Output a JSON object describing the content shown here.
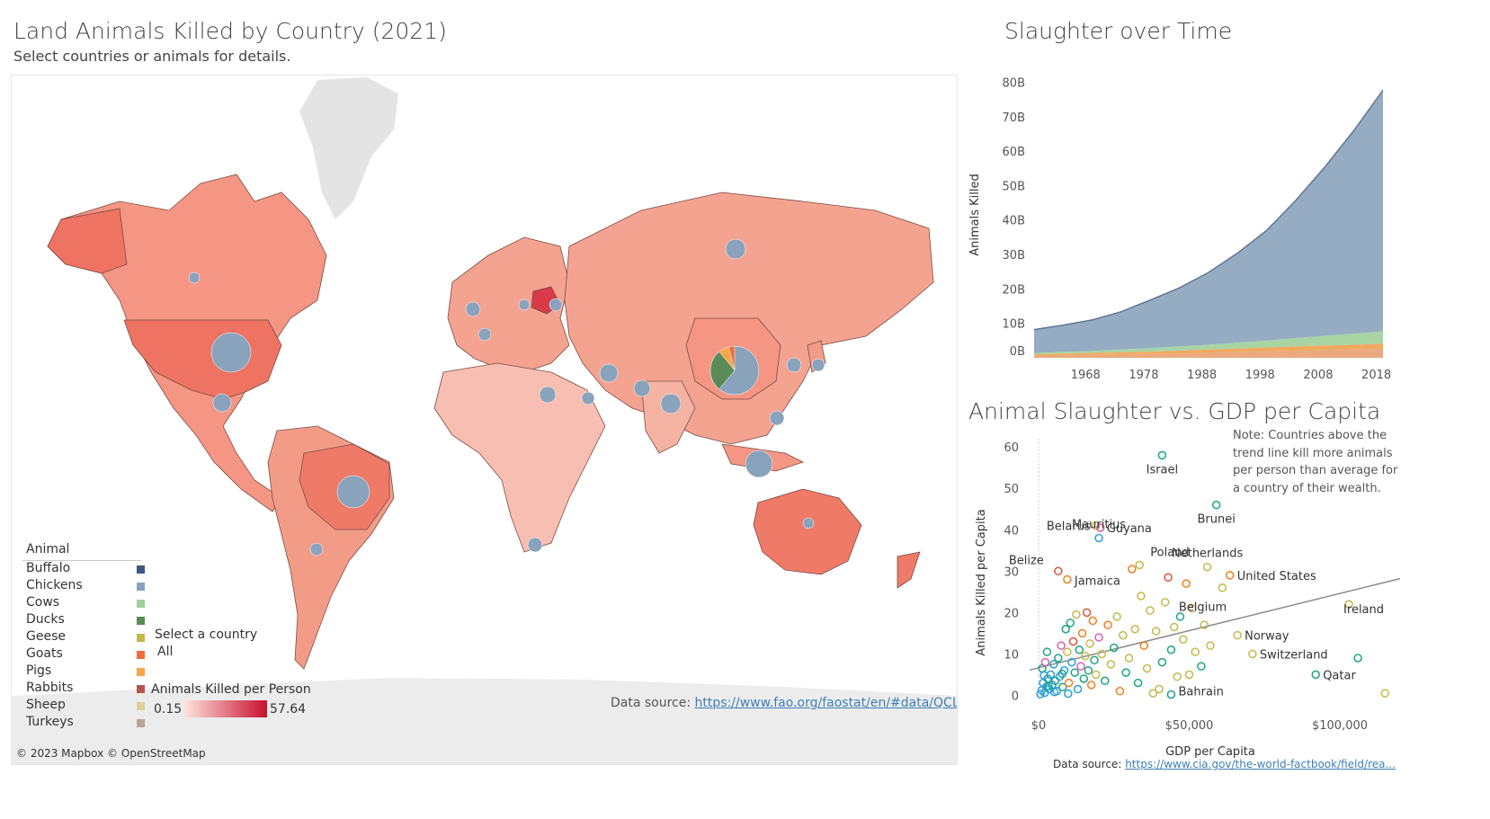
{
  "map": {
    "title": "Land Animals Killed by Country (2021)",
    "subtitle": "Select countries or animals for details.",
    "attribution": "© 2023 Mapbox © OpenStreetMap",
    "source_label": "Data source: ",
    "source_url": "https://www.fao.org/faostat/en/#data/QCL",
    "ocean_color": "#ffffff",
    "land_color": "#f4a391",
    "border_color": "#6e4a44"
  },
  "animal_legend": {
    "title": "Animal",
    "items": [
      {
        "label": "Buffalo",
        "color": "#3b5a7e"
      },
      {
        "label": "Chickens",
        "color": "#8aa3bc"
      },
      {
        "label": "Cows",
        "color": "#9fcf9a"
      },
      {
        "label": "Ducks",
        "color": "#5a8a55"
      },
      {
        "label": "Geese",
        "color": "#c4b84a"
      },
      {
        "label": "Goats",
        "color": "#f26c3c"
      },
      {
        "label": "Pigs",
        "color": "#f5a54a"
      },
      {
        "label": "Rabbits",
        "color": "#b5554e"
      },
      {
        "label": "Sheep",
        "color": "#dfcf95"
      },
      {
        "label": "Turkeys",
        "color": "#b8a296"
      }
    ]
  },
  "country_filter": {
    "label": "Select a country",
    "value": "All"
  },
  "color_legend": {
    "title": "Animals Killed per Person",
    "min": "0.15",
    "max": "57.64",
    "color_min": "#fde3dc",
    "color_max": "#c8102e"
  },
  "time_chart": {
    "title": "Slaughter over Time",
    "chart_data": {
      "type": "area",
      "ylabel": "Animals Killed",
      "xlabel": "",
      "x_ticks": [
        "1968",
        "1978",
        "1988",
        "1998",
        "2008",
        "2018"
      ],
      "y_ticks": [
        "0B",
        "10B",
        "20B",
        "30B",
        "40B",
        "50B",
        "60B",
        "70B",
        "80B"
      ],
      "ylim": [
        0,
        83
      ],
      "xlim": [
        1961,
        2021
      ],
      "x": [
        1961,
        1966,
        1971,
        1976,
        1981,
        1986,
        1991,
        1996,
        2001,
        2006,
        2011,
        2016,
        2021
      ],
      "series": [
        {
          "color": "#e8a070",
          "values": [
            0.6,
            0.7,
            0.8,
            0.9,
            1.0,
            1.2,
            1.4,
            1.6,
            1.8,
            2.0,
            2.2,
            2.4,
            2.6
          ]
        },
        {
          "color": "#f0a050",
          "values": [
            0.4,
            0.5,
            0.6,
            0.7,
            0.8,
            0.9,
            1.0,
            1.1,
            1.2,
            1.3,
            1.4,
            1.4,
            1.5
          ]
        },
        {
          "color": "#9fcf9a",
          "values": [
            0.4,
            0.5,
            0.6,
            0.8,
            1.0,
            1.2,
            1.4,
            1.7,
            2.0,
            2.4,
            2.8,
            3.2,
            3.6
          ]
        },
        {
          "color": "#8aa3bc",
          "values": [
            6.8,
            7.8,
            9.0,
            11.0,
            14.0,
            17.0,
            21.0,
            26.0,
            32.0,
            40.0,
            49.0,
            59.0,
            70.0
          ]
        }
      ]
    }
  },
  "scatter_chart": {
    "title": "Animal Slaughter vs. GDP per Capita",
    "note": "Note: Countries above the trend line kill more animals per person than average for a country of their wealth.",
    "source_label": "Data source: ",
    "source_url": "https://www.cia.gov/the-world-factbook/field/rea...",
    "chart_data": {
      "type": "scatter",
      "xlabel": "GDP per Capita",
      "ylabel": "Animals Killed per Capita",
      "x_ticks": [
        "$0",
        "$50,000",
        "$100,000"
      ],
      "y_ticks": [
        "0",
        "10",
        "20",
        "30",
        "40",
        "50",
        "60"
      ],
      "xlim": [
        -3000,
        120000
      ],
      "ylim": [
        -1,
        62
      ],
      "trend": [
        [
          -3000,
          6.1
        ],
        [
          120000,
          28.2
        ]
      ],
      "labeled_points": [
        {
          "label": "Israel",
          "x": 41000,
          "y": 58,
          "color": "#1aa384"
        },
        {
          "label": "Brunei",
          "x": 59000,
          "y": 46,
          "color": "#1aa384"
        },
        {
          "label": "Belarus",
          "x": 19000,
          "y": 41,
          "color": "#c4b84a"
        },
        {
          "label": "Guyana",
          "x": 20500,
          "y": 40.5,
          "color": "#d65fb5"
        },
        {
          "label": "Mauritius",
          "x": 20000,
          "y": 38,
          "color": "#2a9fd6"
        },
        {
          "label": "Poland",
          "x": 33500,
          "y": 31.5,
          "color": "#c4b84a"
        },
        {
          "label": "Netherlands",
          "x": 56000,
          "y": 31,
          "color": "#c4b84a"
        },
        {
          "label": "United States",
          "x": 63500,
          "y": 29,
          "color": "#f07f1a"
        },
        {
          "label": "Belize",
          "x": 6500,
          "y": 30,
          "color": "#e0503a"
        },
        {
          "label": "Jamaica",
          "x": 9500,
          "y": 28,
          "color": "#f07f1a"
        },
        {
          "label": "Belgium",
          "x": 51000,
          "y": 21,
          "color": "#c4b84a"
        },
        {
          "label": "Ireland",
          "x": 103000,
          "y": 22,
          "color": "#c4b84a"
        },
        {
          "label": "Norway",
          "x": 66000,
          "y": 14.5,
          "color": "#c4b84a"
        },
        {
          "label": "Switzerland",
          "x": 71000,
          "y": 10,
          "color": "#c4b84a"
        },
        {
          "label": "Bahrain",
          "x": 50000,
          "y": 5,
          "color": "#c4b84a"
        },
        {
          "label": "Qatar",
          "x": 92000,
          "y": 5,
          "color": "#1aa384"
        }
      ],
      "points": [
        [
          1000,
          1.2,
          "#2a9fd6"
        ],
        [
          1500,
          3.0,
          "#2a9fd6"
        ],
        [
          2000,
          0.6,
          "#2a9fd6"
        ],
        [
          2500,
          2.0,
          "#2a9fd6"
        ],
        [
          3000,
          4.0,
          "#1aa384"
        ],
        [
          3500,
          1.5,
          "#2a9fd6"
        ],
        [
          4000,
          5.0,
          "#2a9fd6"
        ],
        [
          1200,
          6.5,
          "#1aa384"
        ],
        [
          4500,
          2.5,
          "#2a9fd6"
        ],
        [
          5000,
          7.5,
          "#2a9fd6"
        ],
        [
          5500,
          3.5,
          "#1aa384"
        ],
        [
          6000,
          1.0,
          "#2a9fd6"
        ],
        [
          6500,
          9.0,
          "#1aa384"
        ],
        [
          7000,
          4.5,
          "#2a9fd6"
        ],
        [
          7500,
          12.0,
          "#d65fb5"
        ],
        [
          8000,
          2.0,
          "#1aa384"
        ],
        [
          8500,
          6.0,
          "#2a9fd6"
        ],
        [
          9000,
          16.0,
          "#1aa384"
        ],
        [
          9500,
          10.5,
          "#c4b84a"
        ],
        [
          10000,
          3.0,
          "#f07f1a"
        ],
        [
          10500,
          17.5,
          "#1aa384"
        ],
        [
          11000,
          8.0,
          "#2a9fd6"
        ],
        [
          11500,
          13.0,
          "#e0503a"
        ],
        [
          12000,
          5.5,
          "#1aa384"
        ],
        [
          12500,
          19.5,
          "#c4b84a"
        ],
        [
          13000,
          1.5,
          "#2a9fd6"
        ],
        [
          13500,
          11.0,
          "#1aa384"
        ],
        [
          14000,
          7.0,
          "#d65fb5"
        ],
        [
          14500,
          15.0,
          "#f07f1a"
        ],
        [
          15000,
          4.0,
          "#1aa384"
        ],
        [
          15500,
          9.5,
          "#c4b84a"
        ],
        [
          16000,
          20.0,
          "#e0503a"
        ],
        [
          16500,
          6.0,
          "#1aa384"
        ],
        [
          17000,
          12.5,
          "#c4b84a"
        ],
        [
          17500,
          2.5,
          "#f07f1a"
        ],
        [
          18000,
          18.0,
          "#f07f1a"
        ],
        [
          18500,
          8.5,
          "#1aa384"
        ],
        [
          19000,
          5.0,
          "#c4b84a"
        ],
        [
          20000,
          14.0,
          "#d65fb5"
        ],
        [
          21000,
          10.0,
          "#c4b84a"
        ],
        [
          22000,
          3.5,
          "#1aa384"
        ],
        [
          23000,
          17.0,
          "#f07f1a"
        ],
        [
          24000,
          7.5,
          "#c4b84a"
        ],
        [
          25000,
          11.5,
          "#1aa384"
        ],
        [
          26000,
          19.0,
          "#c4b84a"
        ],
        [
          27000,
          1.0,
          "#f07f1a"
        ],
        [
          28000,
          14.5,
          "#c4b84a"
        ],
        [
          29000,
          5.5,
          "#1aa384"
        ],
        [
          30000,
          9.0,
          "#c4b84a"
        ],
        [
          31000,
          30.5,
          "#f07f1a"
        ],
        [
          32000,
          16.0,
          "#c4b84a"
        ],
        [
          33000,
          3.0,
          "#1aa384"
        ],
        [
          34000,
          24.0,
          "#c4b84a"
        ],
        [
          35000,
          12.0,
          "#f07f1a"
        ],
        [
          36000,
          6.5,
          "#c4b84a"
        ],
        [
          37000,
          20.5,
          "#c4b84a"
        ],
        [
          38000,
          0.5,
          "#c4b84a"
        ],
        [
          39000,
          15.5,
          "#c4b84a"
        ],
        [
          40000,
          1.5,
          "#c4b84a"
        ],
        [
          41000,
          8.0,
          "#1aa384"
        ],
        [
          42000,
          22.5,
          "#c4b84a"
        ],
        [
          43000,
          28.5,
          "#e0503a"
        ],
        [
          44000,
          11.0,
          "#1aa384"
        ],
        [
          45000,
          16.5,
          "#c4b84a"
        ],
        [
          46000,
          4.5,
          "#c4b84a"
        ],
        [
          47000,
          19.0,
          "#1aa384"
        ],
        [
          48000,
          13.5,
          "#c4b84a"
        ],
        [
          49000,
          27.0,
          "#f07f1a"
        ],
        [
          52000,
          10.5,
          "#c4b84a"
        ],
        [
          54000,
          7.0,
          "#1aa384"
        ],
        [
          55000,
          17.0,
          "#c4b84a"
        ],
        [
          57000,
          12.0,
          "#c4b84a"
        ],
        [
          61000,
          26.0,
          "#c4b84a"
        ],
        [
          44000,
          0.2,
          "#1aa384"
        ],
        [
          2800,
          10.5,
          "#1aa384"
        ],
        [
          600,
          0.3,
          "#2a9fd6"
        ],
        [
          1800,
          4.8,
          "#2a9fd6"
        ],
        [
          3200,
          2.2,
          "#1aa384"
        ],
        [
          2200,
          8.0,
          "#d65fb5"
        ],
        [
          5200,
          0.8,
          "#2a9fd6"
        ],
        [
          7800,
          5.2,
          "#1aa384"
        ],
        [
          9800,
          0.4,
          "#2a9fd6"
        ],
        [
          115000,
          0.5,
          "#c4b84a"
        ],
        [
          106000,
          9.0,
          "#1aa384"
        ]
      ]
    }
  }
}
